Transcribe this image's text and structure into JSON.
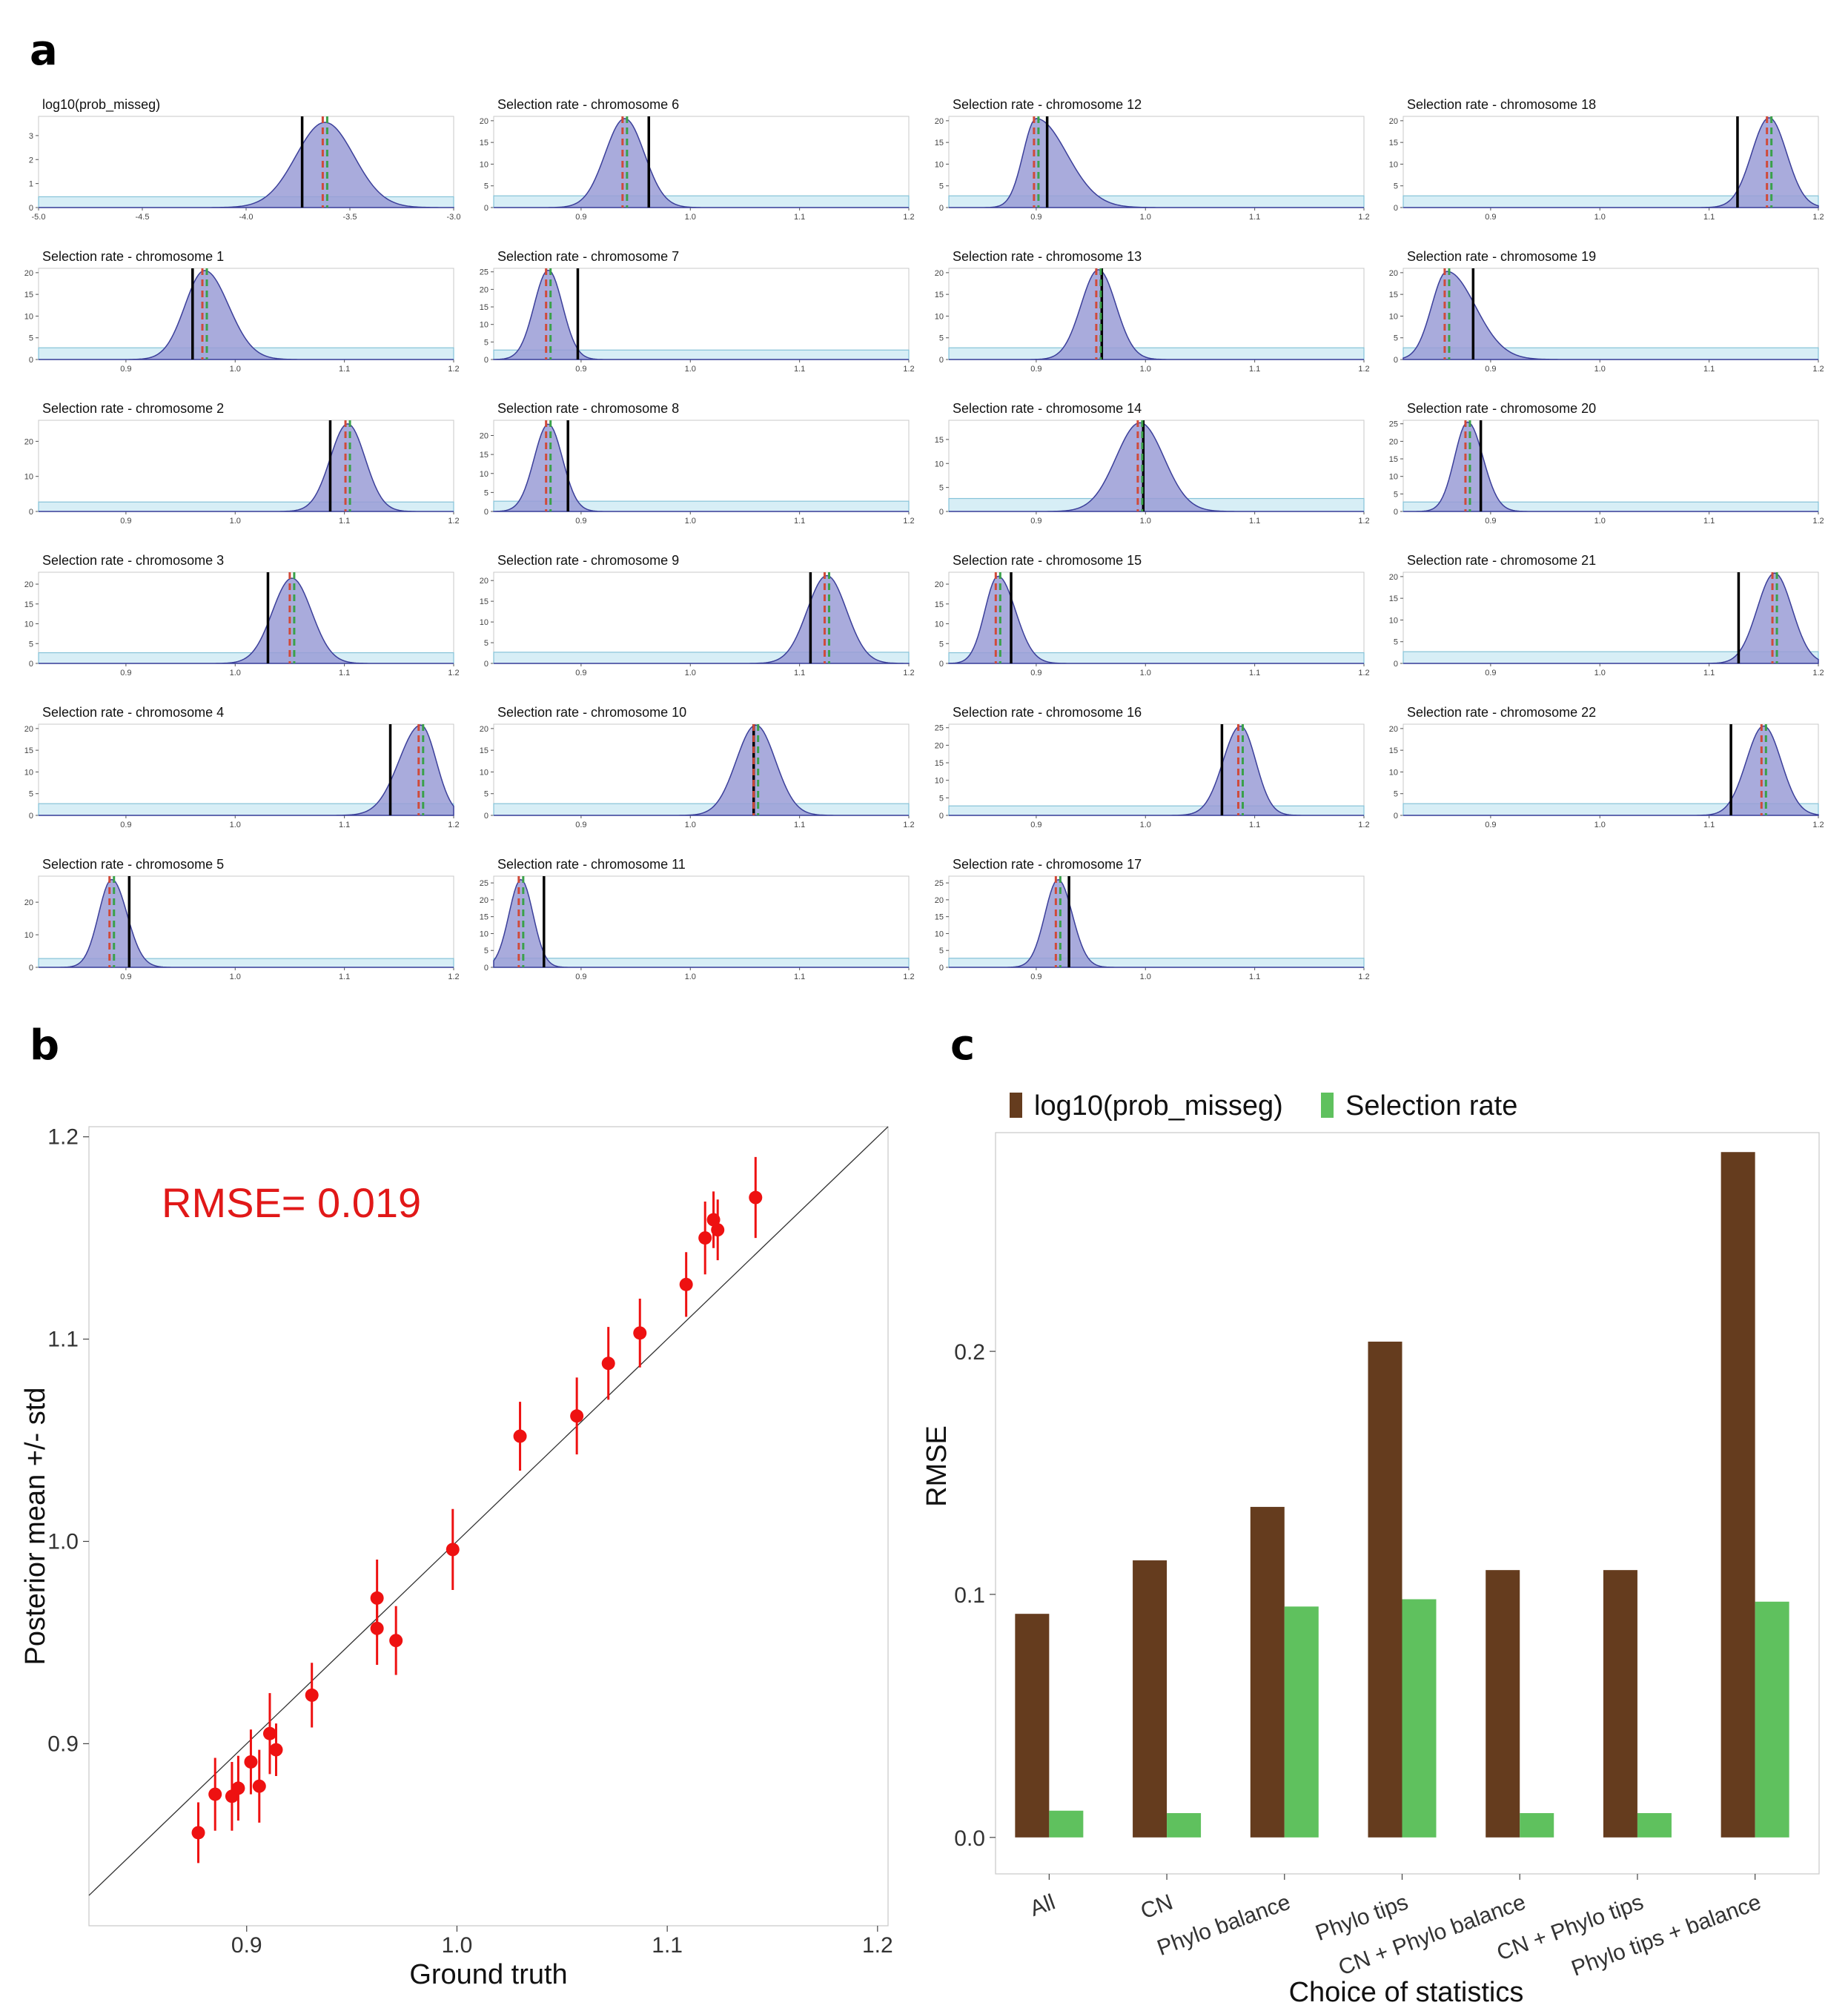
{
  "panels": {
    "a": "a",
    "b": "b",
    "c": "c"
  },
  "panel_a": {
    "type": "density-grid",
    "colors": {
      "density_fill": "#9a9cd6",
      "density_line": "#3b3f9a",
      "prior_fill": "#d7eef6",
      "prior_line": "#86c3d8",
      "truth_line": "#000000",
      "mean_line": "#d04a3a",
      "median_line": "#3aa14a"
    },
    "plots": [
      {
        "title": "log10(prob_misseg)",
        "col": 0,
        "row": 0,
        "xlim": [
          -5.0,
          -3.0
        ],
        "xticks": [
          -5.0,
          -4.5,
          -4.0,
          -3.5,
          -3.0
        ],
        "xtick_labels": [
          "-5.0",
          "-4.5",
          "-4.0",
          "-3.5",
          "-3.0"
        ],
        "ylim": [
          0,
          3.8
        ],
        "yticks": [
          0,
          1,
          2,
          3
        ],
        "peak": 3.55,
        "center": -3.62,
        "sd_l": 0.14,
        "sd_r": 0.14,
        "prior": 0.45,
        "truth": -3.73,
        "mean": -3.62
      },
      {
        "title": "Selection rate - chromosome 1",
        "col": 0,
        "row": 1,
        "xlim": [
          0.82,
          1.2
        ],
        "xticks": [
          0.9,
          1.0,
          1.1,
          1.2
        ],
        "xtick_labels": [
          "0.9",
          "1.0",
          "1.1",
          "1.2"
        ],
        "ylim": [
          0,
          21
        ],
        "yticks": [
          0,
          5,
          10,
          15,
          20
        ],
        "peak": 20.5,
        "center": 0.972,
        "sd_l": 0.018,
        "sd_r": 0.022,
        "prior": 2.7,
        "truth": 0.961,
        "mean": 0.972
      },
      {
        "title": "Selection rate - chromosome 2",
        "col": 0,
        "row": 2,
        "xlim": [
          0.82,
          1.2
        ],
        "xticks": [
          0.9,
          1.0,
          1.1,
          1.2
        ],
        "xtick_labels": [
          "0.9",
          "1.0",
          "1.1",
          "1.2"
        ],
        "ylim": [
          0,
          26
        ],
        "yticks": [
          0,
          10,
          20
        ],
        "peak": 25,
        "center": 1.103,
        "sd_l": 0.016,
        "sd_r": 0.016,
        "prior": 2.7,
        "truth": 1.087,
        "mean": 1.103
      },
      {
        "title": "Selection rate - chromosome 3",
        "col": 0,
        "row": 3,
        "xlim": [
          0.82,
          1.2
        ],
        "xticks": [
          0.9,
          1.0,
          1.1,
          1.2
        ],
        "xtick_labels": [
          "0.9",
          "1.0",
          "1.1",
          "1.2"
        ],
        "ylim": [
          0,
          23
        ],
        "yticks": [
          0,
          5,
          10,
          15,
          20
        ],
        "peak": 21.5,
        "center": 1.052,
        "sd_l": 0.018,
        "sd_r": 0.018,
        "prior": 2.7,
        "truth": 1.03,
        "mean": 1.052
      },
      {
        "title": "Selection rate - chromosome 4",
        "col": 0,
        "row": 4,
        "xlim": [
          0.82,
          1.2
        ],
        "xticks": [
          0.9,
          1.0,
          1.1,
          1.2
        ],
        "xtick_labels": [
          "0.9",
          "1.0",
          "1.1",
          "1.2"
        ],
        "ylim": [
          0,
          21
        ],
        "yticks": [
          0,
          5,
          10,
          15,
          20
        ],
        "peak": 20.8,
        "center": 1.17,
        "sd_l": 0.02,
        "sd_r": 0.014,
        "prior": 2.7,
        "truth": 1.142,
        "mean": 1.17
      },
      {
        "title": "Selection rate - chromosome 5",
        "col": 0,
        "row": 5,
        "xlim": [
          0.82,
          1.2
        ],
        "xticks": [
          0.9,
          1.0,
          1.1,
          1.2
        ],
        "xtick_labels": [
          "0.9",
          "1.0",
          "1.1",
          "1.2"
        ],
        "ylim": [
          0,
          28
        ],
        "yticks": [
          0,
          10,
          20
        ],
        "peak": 27,
        "center": 0.887,
        "sd_l": 0.012,
        "sd_r": 0.014,
        "prior": 2.7,
        "truth": 0.903,
        "mean": 0.887
      },
      {
        "title": "Selection rate - chromosome 6",
        "col": 1,
        "row": 0,
        "xlim": [
          0.82,
          1.2
        ],
        "xticks": [
          0.9,
          1.0,
          1.1,
          1.2
        ],
        "xtick_labels": [
          "0.9",
          "1.0",
          "1.1",
          "1.2"
        ],
        "ylim": [
          0,
          21
        ],
        "yticks": [
          0,
          5,
          10,
          15,
          20
        ],
        "peak": 20.5,
        "center": 0.94,
        "sd_l": 0.018,
        "sd_r": 0.018,
        "prior": 2.7,
        "truth": 0.962,
        "mean": 0.94
      },
      {
        "title": "Selection rate - chromosome 7",
        "col": 1,
        "row": 1,
        "xlim": [
          0.82,
          1.2
        ],
        "xticks": [
          0.9,
          1.0,
          1.1,
          1.2
        ],
        "xtick_labels": [
          "0.9",
          "1.0",
          "1.1",
          "1.2"
        ],
        "ylim": [
          0,
          26
        ],
        "yticks": [
          0,
          5,
          10,
          15,
          20,
          25
        ],
        "peak": 25.5,
        "center": 0.87,
        "sd_l": 0.013,
        "sd_r": 0.013,
        "prior": 2.7,
        "truth": 0.897,
        "mean": 0.87
      },
      {
        "title": "Selection rate - chromosome 8",
        "col": 1,
        "row": 2,
        "xlim": [
          0.82,
          1.2
        ],
        "xticks": [
          0.9,
          1.0,
          1.1,
          1.2
        ],
        "xtick_labels": [
          "0.9",
          "1.0",
          "1.1",
          "1.2"
        ],
        "ylim": [
          0,
          24
        ],
        "yticks": [
          0,
          5,
          10,
          15,
          20
        ],
        "peak": 23,
        "center": 0.87,
        "sd_l": 0.013,
        "sd_r": 0.013,
        "prior": 2.7,
        "truth": 0.888,
        "mean": 0.87
      },
      {
        "title": "Selection rate - chromosome 9",
        "col": 1,
        "row": 3,
        "xlim": [
          0.82,
          1.2
        ],
        "xticks": [
          0.9,
          1.0,
          1.1,
          1.2
        ],
        "xtick_labels": [
          "0.9",
          "1.0",
          "1.1",
          "1.2"
        ],
        "ylim": [
          0,
          22
        ],
        "yticks": [
          0,
          5,
          10,
          15,
          20
        ],
        "peak": 21.2,
        "center": 1.125,
        "sd_l": 0.018,
        "sd_r": 0.018,
        "prior": 2.7,
        "truth": 1.11,
        "mean": 1.125
      },
      {
        "title": "Selection rate - chromosome 10",
        "col": 1,
        "row": 4,
        "xlim": [
          0.82,
          1.2
        ],
        "xticks": [
          0.9,
          1.0,
          1.1,
          1.2
        ],
        "xtick_labels": [
          "0.9",
          "1.0",
          "1.1",
          "1.2"
        ],
        "ylim": [
          0,
          21
        ],
        "yticks": [
          0,
          5,
          10,
          15,
          20
        ],
        "peak": 20.8,
        "center": 1.06,
        "sd_l": 0.018,
        "sd_r": 0.018,
        "prior": 2.7,
        "truth": 1.058,
        "mean": 1.06
      },
      {
        "title": "Selection rate - chromosome 11",
        "col": 1,
        "row": 5,
        "xlim": [
          0.82,
          1.2
        ],
        "xticks": [
          0.9,
          1.0,
          1.1,
          1.2
        ],
        "xtick_labels": [
          "0.9",
          "1.0",
          "1.1",
          "1.2"
        ],
        "ylim": [
          0,
          27
        ],
        "yticks": [
          0,
          5,
          10,
          15,
          20,
          25
        ],
        "peak": 26,
        "center": 0.845,
        "sd_l": 0.011,
        "sd_r": 0.011,
        "prior": 2.7,
        "truth": 0.866,
        "mean": 0.845
      },
      {
        "title": "Selection rate - chromosome 12",
        "col": 2,
        "row": 0,
        "xlim": [
          0.82,
          1.2
        ],
        "xticks": [
          0.9,
          1.0,
          1.1,
          1.2
        ],
        "xtick_labels": [
          "0.9",
          "1.0",
          "1.1",
          "1.2"
        ],
        "ylim": [
          0,
          21
        ],
        "yticks": [
          0,
          5,
          10,
          15,
          20
        ],
        "peak": 20.5,
        "center": 0.9,
        "sd_l": 0.012,
        "sd_r": 0.028,
        "prior": 2.7,
        "truth": 0.91,
        "mean": 0.9
      },
      {
        "title": "Selection rate - chromosome 13",
        "col": 2,
        "row": 1,
        "xlim": [
          0.82,
          1.2
        ],
        "xticks": [
          0.9,
          1.0,
          1.1,
          1.2
        ],
        "xtick_labels": [
          "0.9",
          "1.0",
          "1.1",
          "1.2"
        ],
        "ylim": [
          0,
          21
        ],
        "yticks": [
          0,
          5,
          10,
          15,
          20
        ],
        "peak": 20.7,
        "center": 0.957,
        "sd_l": 0.016,
        "sd_r": 0.016,
        "prior": 2.7,
        "truth": 0.96,
        "mean": 0.957
      },
      {
        "title": "Selection rate - chromosome 14",
        "col": 2,
        "row": 2,
        "xlim": [
          0.82,
          1.2
        ],
        "xticks": [
          0.9,
          1.0,
          1.1,
          1.2
        ],
        "xtick_labels": [
          "0.9",
          "1.0",
          "1.1",
          "1.2"
        ],
        "ylim": [
          0,
          19
        ],
        "yticks": [
          0,
          5,
          10,
          15
        ],
        "peak": 18.5,
        "center": 0.995,
        "sd_l": 0.022,
        "sd_r": 0.022,
        "prior": 2.7,
        "truth": 0.998,
        "mean": 0.995
      },
      {
        "title": "Selection rate - chromosome 15",
        "col": 2,
        "row": 3,
        "xlim": [
          0.82,
          1.2
        ],
        "xticks": [
          0.9,
          1.0,
          1.1,
          1.2
        ],
        "xtick_labels": [
          "0.9",
          "1.0",
          "1.1",
          "1.2"
        ],
        "ylim": [
          0,
          23
        ],
        "yticks": [
          0,
          5,
          10,
          15,
          20
        ],
        "peak": 22,
        "center": 0.865,
        "sd_l": 0.012,
        "sd_r": 0.016,
        "prior": 2.7,
        "truth": 0.877,
        "mean": 0.865
      },
      {
        "title": "Selection rate - chromosome 16",
        "col": 2,
        "row": 4,
        "xlim": [
          0.82,
          1.2
        ],
        "xticks": [
          0.9,
          1.0,
          1.1,
          1.2
        ],
        "xtick_labels": [
          "0.9",
          "1.0",
          "1.1",
          "1.2"
        ],
        "ylim": [
          0,
          26
        ],
        "yticks": [
          0,
          5,
          10,
          15,
          20,
          25
        ],
        "peak": 25.5,
        "center": 1.087,
        "sd_l": 0.016,
        "sd_r": 0.014,
        "prior": 2.7,
        "truth": 1.07,
        "mean": 1.087
      },
      {
        "title": "Selection rate - chromosome 17",
        "col": 2,
        "row": 5,
        "xlim": [
          0.82,
          1.2
        ],
        "xticks": [
          0.9,
          1.0,
          1.1,
          1.2
        ],
        "xtick_labels": [
          "0.9",
          "1.0",
          "1.1",
          "1.2"
        ],
        "ylim": [
          0,
          27
        ],
        "yticks": [
          0,
          5,
          10,
          15,
          20,
          25
        ],
        "peak": 26,
        "center": 0.92,
        "sd_l": 0.012,
        "sd_r": 0.013,
        "prior": 2.7,
        "truth": 0.93,
        "mean": 0.92
      },
      {
        "title": "Selection rate - chromosome 18",
        "col": 3,
        "row": 0,
        "xlim": [
          0.82,
          1.2
        ],
        "xticks": [
          0.9,
          1.0,
          1.1,
          1.2
        ],
        "xtick_labels": [
          "0.9",
          "1.0",
          "1.1",
          "1.2"
        ],
        "ylim": [
          0,
          21
        ],
        "yticks": [
          0,
          5,
          10,
          15,
          20
        ],
        "peak": 20.7,
        "center": 1.155,
        "sd_l": 0.016,
        "sd_r": 0.016,
        "prior": 2.7,
        "truth": 1.126,
        "mean": 1.155
      },
      {
        "title": "Selection rate - chromosome 19",
        "col": 3,
        "row": 1,
        "xlim": [
          0.82,
          1.2
        ],
        "xticks": [
          0.9,
          1.0,
          1.1,
          1.2
        ],
        "xtick_labels": [
          "0.9",
          "1.0",
          "1.1",
          "1.2"
        ],
        "ylim": [
          0,
          21
        ],
        "yticks": [
          0,
          5,
          10,
          15,
          20
        ],
        "peak": 20.3,
        "center": 0.86,
        "sd_l": 0.014,
        "sd_r": 0.026,
        "prior": 2.7,
        "truth": 0.884,
        "mean": 0.86
      },
      {
        "title": "Selection rate - chromosome 20",
        "col": 3,
        "row": 2,
        "xlim": [
          0.82,
          1.2
        ],
        "xticks": [
          0.9,
          1.0,
          1.1,
          1.2
        ],
        "xtick_labels": [
          "0.9",
          "1.0",
          "1.1",
          "1.2"
        ],
        "ylim": [
          0,
          26
        ],
        "yticks": [
          0,
          5,
          10,
          15,
          20,
          25
        ],
        "peak": 25.5,
        "center": 0.879,
        "sd_l": 0.012,
        "sd_r": 0.014,
        "prior": 2.7,
        "truth": 0.891,
        "mean": 0.879
      },
      {
        "title": "Selection rate - chromosome 21",
        "col": 3,
        "row": 3,
        "xlim": [
          0.82,
          1.2
        ],
        "xticks": [
          0.9,
          1.0,
          1.1,
          1.2
        ],
        "xtick_labels": [
          "0.9",
          "1.0",
          "1.1",
          "1.2"
        ],
        "ylim": [
          0,
          21
        ],
        "yticks": [
          0,
          5,
          10,
          15,
          20
        ],
        "peak": 20.8,
        "center": 1.16,
        "sd_l": 0.016,
        "sd_r": 0.016,
        "prior": 2.7,
        "truth": 1.127,
        "mean": 1.16
      },
      {
        "title": "Selection rate - chromosome 22",
        "col": 3,
        "row": 4,
        "xlim": [
          0.82,
          1.2
        ],
        "xticks": [
          0.9,
          1.0,
          1.1,
          1.2
        ],
        "xtick_labels": [
          "0.9",
          "1.0",
          "1.1",
          "1.2"
        ],
        "ylim": [
          0,
          21
        ],
        "yticks": [
          0,
          5,
          10,
          15,
          20
        ],
        "peak": 20.6,
        "center": 1.15,
        "sd_l": 0.016,
        "sd_r": 0.016,
        "prior": 2.7,
        "truth": 1.12,
        "mean": 1.15
      }
    ]
  },
  "chart_data": [
    {
      "type": "scatter",
      "title": "",
      "annotation": "RMSE= 0.019",
      "xlabel": "Ground truth",
      "ylabel": "Posterior mean +/- std",
      "xlim": [
        0.825,
        1.205
      ],
      "ylim": [
        0.81,
        1.205
      ],
      "xticks": [
        0.9,
        1.0,
        1.1,
        1.2
      ],
      "xtick_labels": [
        "0.9",
        "1.0",
        "1.1",
        "1.2"
      ],
      "yticks": [
        0.9,
        1.0,
        1.1,
        1.2
      ],
      "ytick_labels": [
        "0.9",
        "1.0",
        "1.1",
        "1.2"
      ],
      "reference_line": "y = x",
      "point_color": "#ee1111",
      "points": [
        {
          "x": 0.877,
          "y": 0.856,
          "sd": 0.015
        },
        {
          "x": 0.885,
          "y": 0.875,
          "sd": 0.018
        },
        {
          "x": 0.893,
          "y": 0.874,
          "sd": 0.017
        },
        {
          "x": 0.896,
          "y": 0.878,
          "sd": 0.016
        },
        {
          "x": 0.902,
          "y": 0.891,
          "sd": 0.016
        },
        {
          "x": 0.906,
          "y": 0.879,
          "sd": 0.018
        },
        {
          "x": 0.911,
          "y": 0.905,
          "sd": 0.02
        },
        {
          "x": 0.914,
          "y": 0.897,
          "sd": 0.013
        },
        {
          "x": 0.931,
          "y": 0.924,
          "sd": 0.016
        },
        {
          "x": 0.962,
          "y": 0.972,
          "sd": 0.019
        },
        {
          "x": 0.962,
          "y": 0.957,
          "sd": 0.018
        },
        {
          "x": 0.971,
          "y": 0.951,
          "sd": 0.017
        },
        {
          "x": 0.998,
          "y": 0.996,
          "sd": 0.02
        },
        {
          "x": 1.03,
          "y": 1.052,
          "sd": 0.017
        },
        {
          "x": 1.057,
          "y": 1.062,
          "sd": 0.019
        },
        {
          "x": 1.072,
          "y": 1.088,
          "sd": 0.018
        },
        {
          "x": 1.087,
          "y": 1.103,
          "sd": 0.017
        },
        {
          "x": 1.109,
          "y": 1.127,
          "sd": 0.016
        },
        {
          "x": 1.118,
          "y": 1.15,
          "sd": 0.018
        },
        {
          "x": 1.122,
          "y": 1.159,
          "sd": 0.014
        },
        {
          "x": 1.124,
          "y": 1.154,
          "sd": 0.015
        },
        {
          "x": 1.142,
          "y": 1.17,
          "sd": 0.02
        }
      ]
    },
    {
      "type": "bar",
      "title": "",
      "xlabel": "Choice of statistics",
      "ylabel": "RMSE",
      "ylim": [
        -0.015,
        0.29
      ],
      "yticks": [
        0.0,
        0.1,
        0.2
      ],
      "ytick_labels": [
        "0.0",
        "0.1",
        "0.2"
      ],
      "categories": [
        "All",
        "CN",
        "Phylo balance",
        "Phylo tips",
        "CN + Phylo balance",
        "CN + Phylo tips",
        "Phylo tips + balance"
      ],
      "series": [
        {
          "name": "log10(prob_misseg)",
          "color": "#653c1e",
          "values": [
            0.092,
            0.114,
            0.136,
            0.204,
            0.11,
            0.11,
            0.282
          ]
        },
        {
          "name": "Selection rate",
          "color": "#5fc15e",
          "values": [
            0.011,
            0.01,
            0.095,
            0.098,
            0.01,
            0.01,
            0.097
          ]
        }
      ],
      "legend_position": "top"
    }
  ]
}
